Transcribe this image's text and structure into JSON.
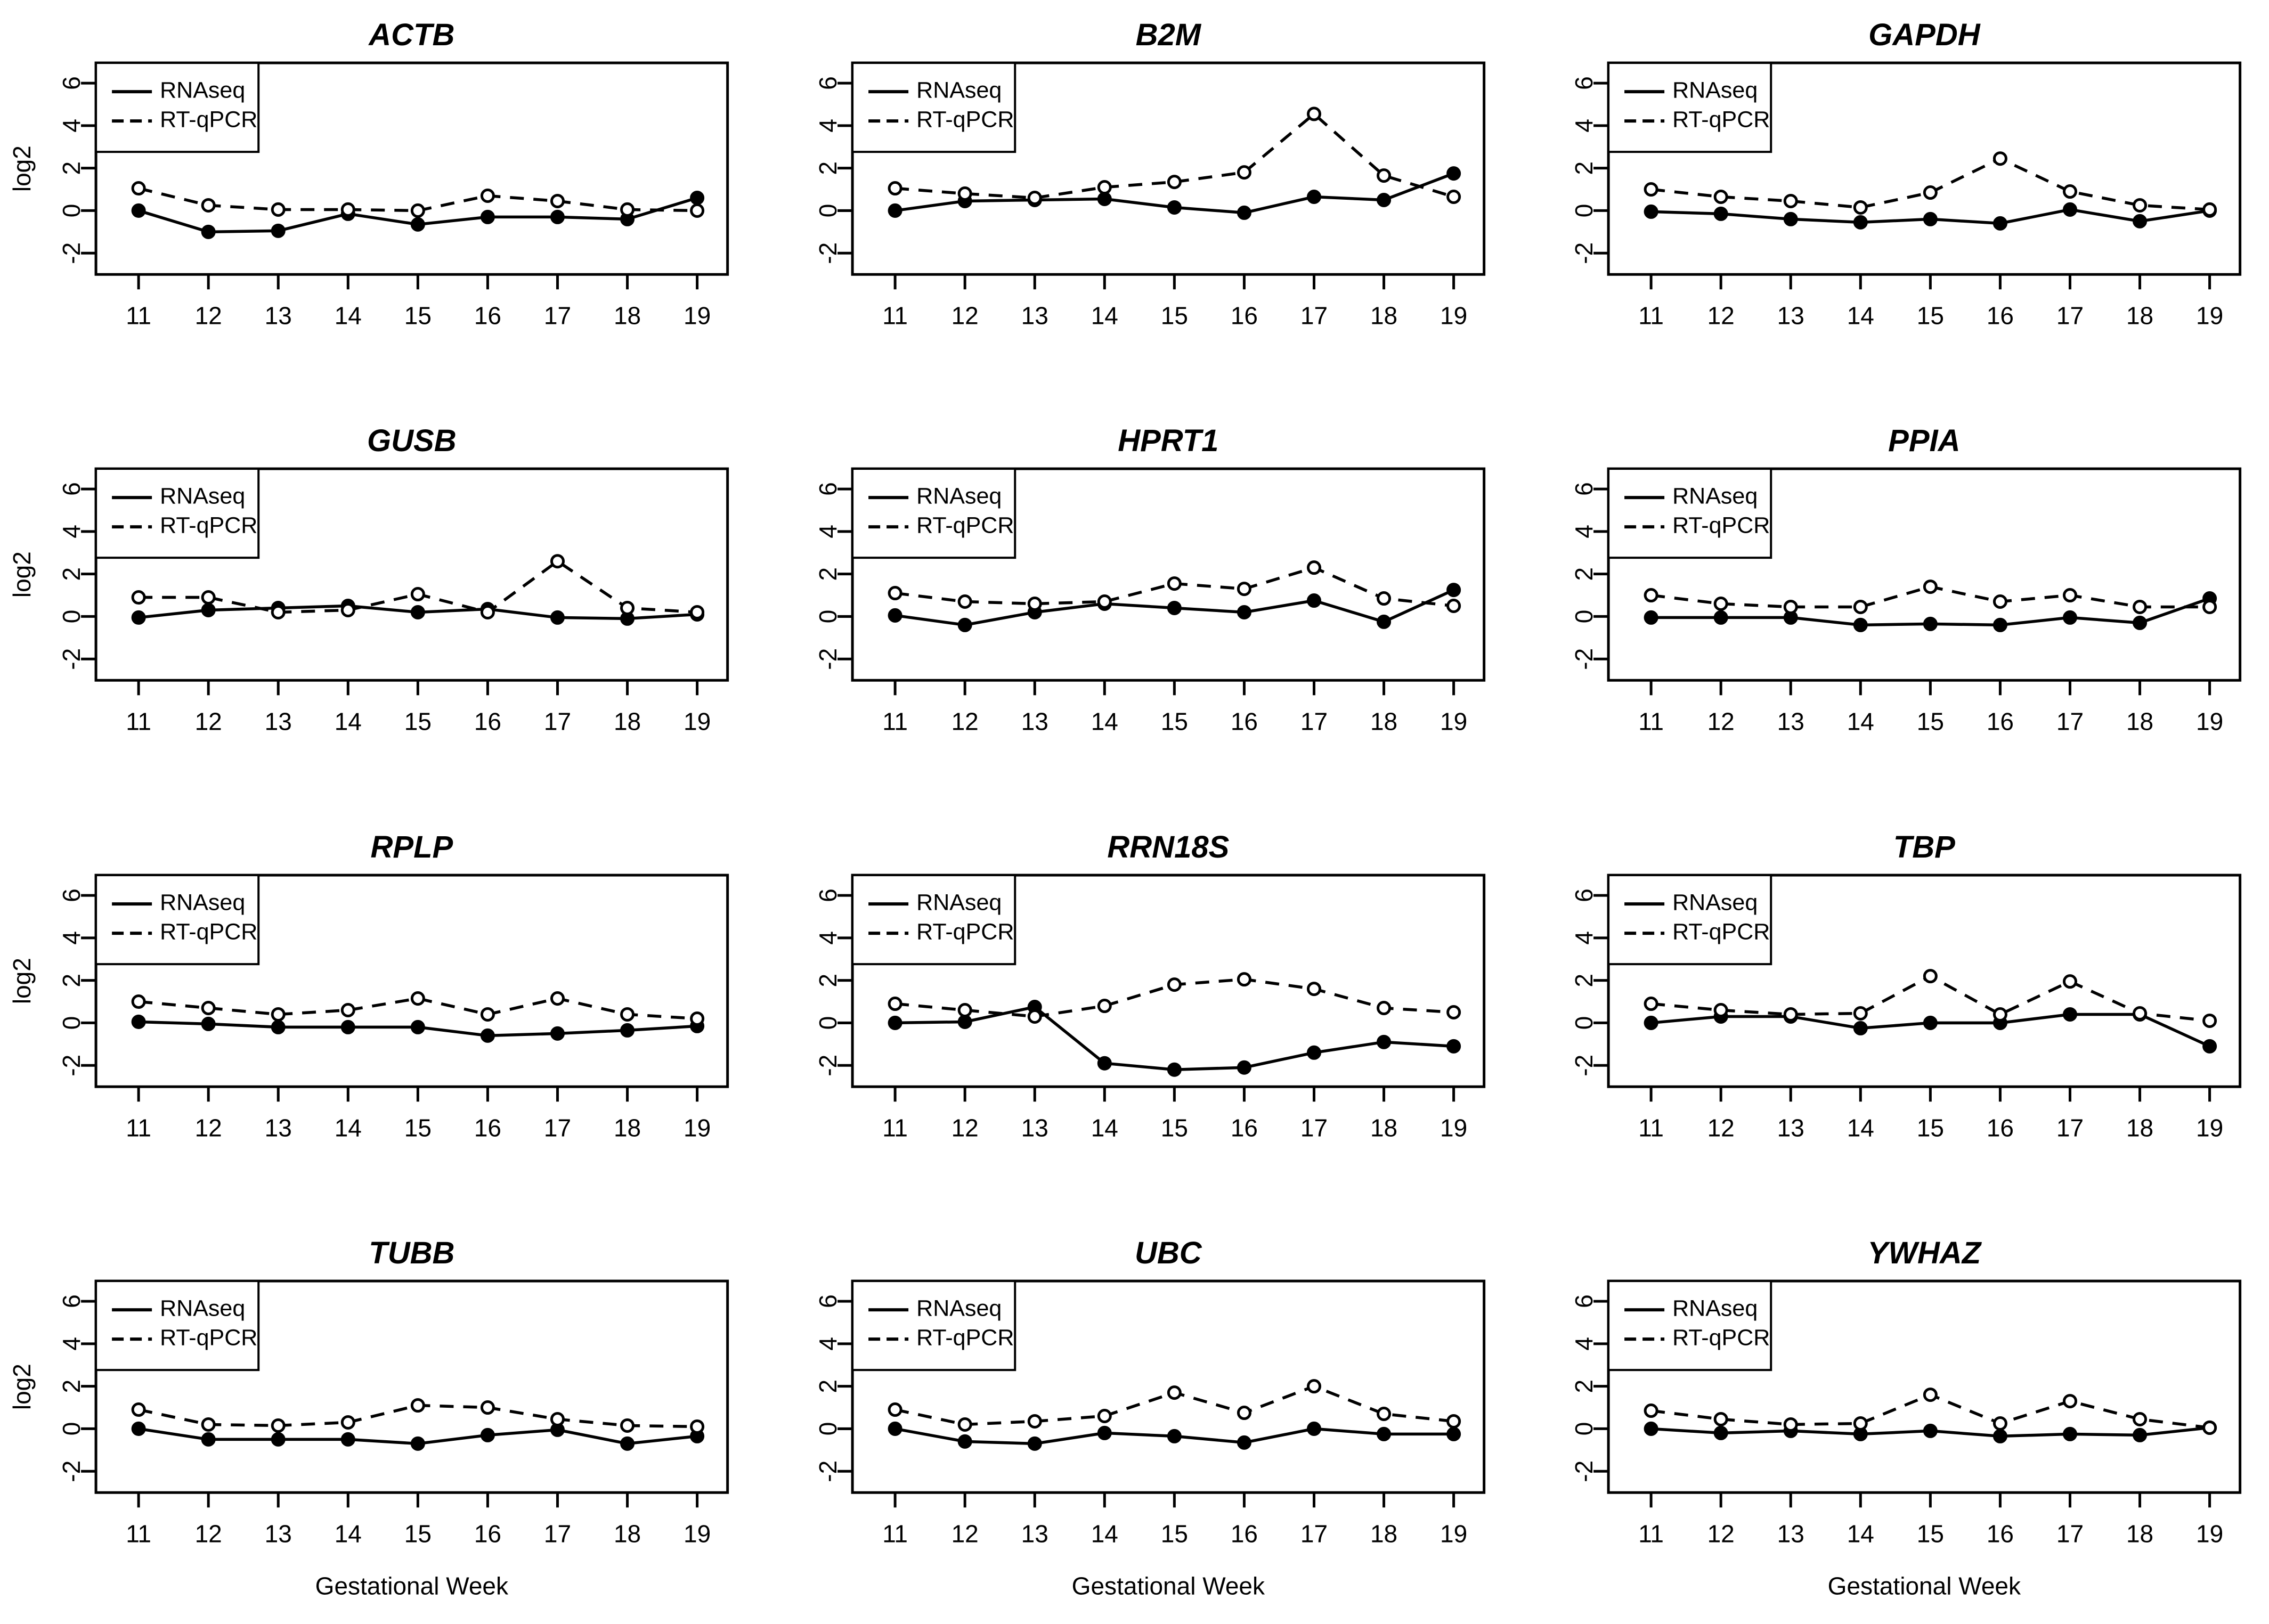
{
  "figure": {
    "x_axis_label": "Gestational Week",
    "y_axis_label": "log2",
    "legend": {
      "series1": "RNAseq",
      "series2": "RT-qPCR"
    },
    "colors": {
      "foreground": "#000000",
      "background": "#ffffff"
    }
  },
  "chart_data": [
    {
      "type": "line",
      "title": "ACTB",
      "xlabel": "Gestational Week",
      "ylabel": "log2",
      "x": [
        11,
        12,
        13,
        14,
        15,
        16,
        17,
        18,
        19
      ],
      "ylim": [
        -3,
        7
      ],
      "yticks": [
        -2,
        0,
        2,
        4,
        6
      ],
      "grid": false,
      "legend_position": "top-left",
      "series": [
        {
          "name": "RNAseq",
          "style": "solid",
          "marker": "filled-circle",
          "values": [
            0.0,
            -1.0,
            -0.95,
            -0.15,
            -0.65,
            -0.3,
            -0.3,
            -0.4,
            0.6
          ]
        },
        {
          "name": "RT-qPCR",
          "style": "dashed",
          "marker": "open-circle",
          "values": [
            1.05,
            0.25,
            0.05,
            0.05,
            0.0,
            0.7,
            0.45,
            0.05,
            0.0
          ]
        }
      ]
    },
    {
      "type": "line",
      "title": "B2M",
      "xlabel": "Gestational Week",
      "ylabel": "log2",
      "x": [
        11,
        12,
        13,
        14,
        15,
        16,
        17,
        18,
        19
      ],
      "ylim": [
        -3,
        7
      ],
      "yticks": [
        -2,
        0,
        2,
        4,
        6
      ],
      "grid": false,
      "legend_position": "top-left",
      "series": [
        {
          "name": "RNAseq",
          "style": "solid",
          "marker": "filled-circle",
          "values": [
            0.0,
            0.45,
            0.5,
            0.55,
            0.15,
            -0.1,
            0.65,
            0.5,
            1.75
          ]
        },
        {
          "name": "RT-qPCR",
          "style": "dashed",
          "marker": "open-circle",
          "values": [
            1.05,
            0.8,
            0.6,
            1.1,
            1.35,
            1.8,
            4.55,
            1.65,
            0.65
          ]
        }
      ]
    },
    {
      "type": "line",
      "title": "GAPDH",
      "xlabel": "Gestational Week",
      "ylabel": "log2",
      "x": [
        11,
        12,
        13,
        14,
        15,
        16,
        17,
        18,
        19
      ],
      "ylim": [
        -3,
        7
      ],
      "yticks": [
        -2,
        0,
        2,
        4,
        6
      ],
      "grid": false,
      "legend_position": "top-left",
      "series": [
        {
          "name": "RNAseq",
          "style": "solid",
          "marker": "filled-circle",
          "values": [
            -0.05,
            -0.15,
            -0.4,
            -0.55,
            -0.4,
            -0.6,
            0.05,
            -0.5,
            0.0
          ]
        },
        {
          "name": "RT-qPCR",
          "style": "dashed",
          "marker": "open-circle",
          "values": [
            1.0,
            0.65,
            0.45,
            0.15,
            0.85,
            2.45,
            0.9,
            0.25,
            0.05
          ]
        }
      ]
    },
    {
      "type": "line",
      "title": "GUSB",
      "xlabel": "Gestational Week",
      "ylabel": "log2",
      "x": [
        11,
        12,
        13,
        14,
        15,
        16,
        17,
        18,
        19
      ],
      "ylim": [
        -3,
        7
      ],
      "yticks": [
        -2,
        0,
        2,
        4,
        6
      ],
      "grid": false,
      "legend_position": "top-left",
      "series": [
        {
          "name": "RNAseq",
          "style": "solid",
          "marker": "filled-circle",
          "values": [
            -0.05,
            0.3,
            0.4,
            0.5,
            0.2,
            0.35,
            -0.05,
            -0.1,
            0.1
          ]
        },
        {
          "name": "RT-qPCR",
          "style": "dashed",
          "marker": "open-circle",
          "values": [
            0.9,
            0.9,
            0.2,
            0.3,
            1.05,
            0.2,
            2.6,
            0.4,
            0.2
          ]
        }
      ]
    },
    {
      "type": "line",
      "title": "HPRT1",
      "xlabel": "Gestational Week",
      "ylabel": "log2",
      "x": [
        11,
        12,
        13,
        14,
        15,
        16,
        17,
        18,
        19
      ],
      "ylim": [
        -3,
        7
      ],
      "yticks": [
        -2,
        0,
        2,
        4,
        6
      ],
      "grid": false,
      "legend_position": "top-left",
      "series": [
        {
          "name": "RNAseq",
          "style": "solid",
          "marker": "filled-circle",
          "values": [
            0.05,
            -0.4,
            0.2,
            0.6,
            0.4,
            0.2,
            0.75,
            -0.25,
            1.25
          ]
        },
        {
          "name": "RT-qPCR",
          "style": "dashed",
          "marker": "open-circle",
          "values": [
            1.1,
            0.7,
            0.6,
            0.7,
            1.55,
            1.3,
            2.3,
            0.85,
            0.5
          ]
        }
      ]
    },
    {
      "type": "line",
      "title": "PPIA",
      "xlabel": "Gestational Week",
      "ylabel": "log2",
      "x": [
        11,
        12,
        13,
        14,
        15,
        16,
        17,
        18,
        19
      ],
      "ylim": [
        -3,
        7
      ],
      "yticks": [
        -2,
        0,
        2,
        4,
        6
      ],
      "grid": false,
      "legend_position": "top-left",
      "series": [
        {
          "name": "RNAseq",
          "style": "solid",
          "marker": "filled-circle",
          "values": [
            -0.05,
            -0.05,
            -0.05,
            -0.4,
            -0.35,
            -0.4,
            -0.05,
            -0.3,
            0.85
          ]
        },
        {
          "name": "RT-qPCR",
          "style": "dashed",
          "marker": "open-circle",
          "values": [
            1.0,
            0.6,
            0.45,
            0.45,
            1.4,
            0.7,
            1.0,
            0.45,
            0.45
          ]
        }
      ]
    },
    {
      "type": "line",
      "title": "RPLP",
      "xlabel": "Gestational Week",
      "ylabel": "log2",
      "x": [
        11,
        12,
        13,
        14,
        15,
        16,
        17,
        18,
        19
      ],
      "ylim": [
        -3,
        7
      ],
      "yticks": [
        -2,
        0,
        2,
        4,
        6
      ],
      "grid": false,
      "legend_position": "top-left",
      "series": [
        {
          "name": "RNAseq",
          "style": "solid",
          "marker": "filled-circle",
          "values": [
            0.05,
            -0.05,
            -0.2,
            -0.2,
            -0.2,
            -0.6,
            -0.5,
            -0.35,
            -0.15
          ]
        },
        {
          "name": "RT-qPCR",
          "style": "dashed",
          "marker": "open-circle",
          "values": [
            1.0,
            0.7,
            0.4,
            0.6,
            1.15,
            0.4,
            1.15,
            0.4,
            0.2
          ]
        }
      ]
    },
    {
      "type": "line",
      "title": "RRN18S",
      "xlabel": "Gestational Week",
      "ylabel": "log2",
      "x": [
        11,
        12,
        13,
        14,
        15,
        16,
        17,
        18,
        19
      ],
      "ylim": [
        -3,
        7
      ],
      "yticks": [
        -2,
        0,
        2,
        4,
        6
      ],
      "grid": false,
      "legend_position": "top-left",
      "series": [
        {
          "name": "RNAseq",
          "style": "solid",
          "marker": "filled-circle",
          "values": [
            0.0,
            0.05,
            0.75,
            -1.9,
            -2.2,
            -2.1,
            -1.4,
            -0.9,
            -1.1
          ]
        },
        {
          "name": "RT-qPCR",
          "style": "dashed",
          "marker": "open-circle",
          "values": [
            0.9,
            0.6,
            0.3,
            0.8,
            1.8,
            2.05,
            1.6,
            0.7,
            0.5
          ]
        }
      ]
    },
    {
      "type": "line",
      "title": "TBP",
      "xlabel": "Gestational Week",
      "ylabel": "log2",
      "x": [
        11,
        12,
        13,
        14,
        15,
        16,
        17,
        18,
        19
      ],
      "ylim": [
        -3,
        7
      ],
      "yticks": [
        -2,
        0,
        2,
        4,
        6
      ],
      "grid": false,
      "legend_position": "top-left",
      "series": [
        {
          "name": "RNAseq",
          "style": "solid",
          "marker": "filled-circle",
          "values": [
            0.0,
            0.3,
            0.3,
            -0.25,
            0.0,
            0.0,
            0.4,
            0.4,
            -1.1
          ]
        },
        {
          "name": "RT-qPCR",
          "style": "dashed",
          "marker": "open-circle",
          "values": [
            0.9,
            0.6,
            0.4,
            0.45,
            2.2,
            0.4,
            1.95,
            0.45,
            0.1
          ]
        }
      ]
    },
    {
      "type": "line",
      "title": "TUBB",
      "xlabel": "Gestational Week",
      "ylabel": "log2",
      "x": [
        11,
        12,
        13,
        14,
        15,
        16,
        17,
        18,
        19
      ],
      "ylim": [
        -3,
        7
      ],
      "yticks": [
        -2,
        0,
        2,
        4,
        6
      ],
      "grid": false,
      "legend_position": "top-left",
      "series": [
        {
          "name": "RNAseq",
          "style": "solid",
          "marker": "filled-circle",
          "values": [
            0.0,
            -0.5,
            -0.5,
            -0.5,
            -0.7,
            -0.3,
            -0.05,
            -0.7,
            -0.35
          ]
        },
        {
          "name": "RT-qPCR",
          "style": "dashed",
          "marker": "open-circle",
          "values": [
            0.9,
            0.2,
            0.15,
            0.3,
            1.1,
            1.0,
            0.45,
            0.15,
            0.1
          ]
        }
      ]
    },
    {
      "type": "line",
      "title": "UBC",
      "xlabel": "Gestational Week",
      "ylabel": "log2",
      "x": [
        11,
        12,
        13,
        14,
        15,
        16,
        17,
        18,
        19
      ],
      "ylim": [
        -3,
        7
      ],
      "yticks": [
        -2,
        0,
        2,
        4,
        6
      ],
      "grid": false,
      "legend_position": "top-left",
      "series": [
        {
          "name": "RNAseq",
          "style": "solid",
          "marker": "filled-circle",
          "values": [
            0.0,
            -0.6,
            -0.7,
            -0.2,
            -0.35,
            -0.65,
            0.0,
            -0.25,
            -0.25
          ]
        },
        {
          "name": "RT-qPCR",
          "style": "dashed",
          "marker": "open-circle",
          "values": [
            0.9,
            0.2,
            0.35,
            0.6,
            1.7,
            0.75,
            2.0,
            0.7,
            0.35
          ]
        }
      ]
    },
    {
      "type": "line",
      "title": "YWHAZ",
      "xlabel": "Gestational Week",
      "ylabel": "log2",
      "x": [
        11,
        12,
        13,
        14,
        15,
        16,
        17,
        18,
        19
      ],
      "ylim": [
        -3,
        7
      ],
      "yticks": [
        -2,
        0,
        2,
        4,
        6
      ],
      "grid": false,
      "legend_position": "top-left",
      "series": [
        {
          "name": "RNAseq",
          "style": "solid",
          "marker": "filled-circle",
          "values": [
            0.0,
            -0.2,
            -0.1,
            -0.25,
            -0.1,
            -0.35,
            -0.25,
            -0.3,
            0.05
          ]
        },
        {
          "name": "RT-qPCR",
          "style": "dashed",
          "marker": "open-circle",
          "values": [
            0.85,
            0.45,
            0.2,
            0.25,
            1.6,
            0.25,
            1.3,
            0.45,
            0.05
          ]
        }
      ]
    }
  ]
}
